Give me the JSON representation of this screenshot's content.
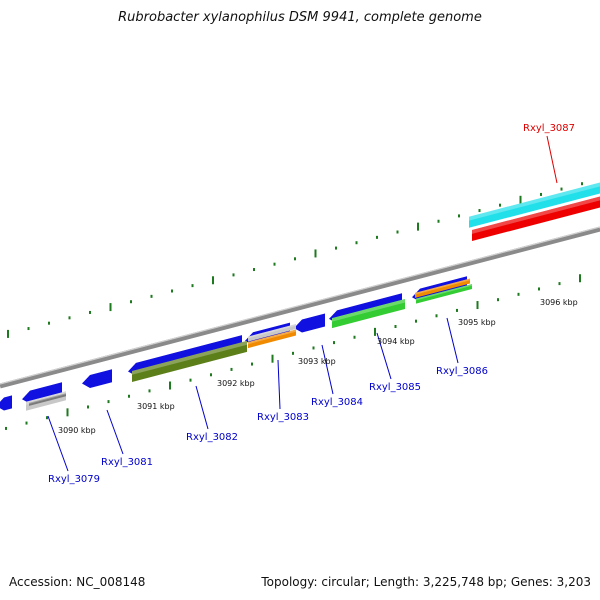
{
  "title": "Rubrobacter xylanophilus DSM 9941, complete genome",
  "footer": {
    "accession": "Accession: NC_008148",
    "summary": "Topology: circular; Length: 3,225,748 bp; Genes: 3,203"
  },
  "colors": {
    "backbone": "#8a8a8a",
    "tick": "#1e7a1e",
    "label_blue": "#0000cc",
    "label_red": "#dd0000",
    "blue": "#1010e0",
    "olive": "#5d7f1a",
    "orange": "#f08a00",
    "green": "#33cc33",
    "gray": "#c8c8c8",
    "cyan": "#22e0ea",
    "red": "#ee0000"
  },
  "kbp_labels": [
    "3090 kbp",
    "3091 kbp",
    "3092 kbp",
    "3093 kbp",
    "3094 kbp",
    "3095 kbp",
    "3096 kbp"
  ],
  "gene_labels": [
    "Rxyl_3079",
    "Rxyl_3081",
    "Rxyl_3082",
    "Rxyl_3083",
    "Rxyl_3084",
    "Rxyl_3085",
    "Rxyl_3086",
    "Rxyl_3087"
  ]
}
